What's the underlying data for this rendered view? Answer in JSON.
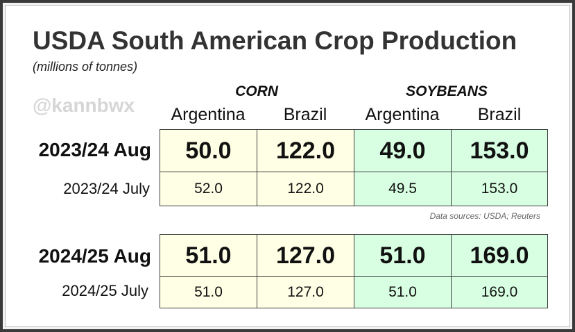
{
  "chart_data": {
    "type": "table",
    "title": "USDA South American Crop Production",
    "subtitle": "(millions of tonnes)",
    "watermark": "@kannbwx",
    "groups": [
      "CORN",
      "SOYBEANS"
    ],
    "columns": [
      "Argentina",
      "Brazil",
      "Argentina",
      "Brazil"
    ],
    "rows": [
      {
        "label": "2023/24 Aug",
        "values": [
          "50.0",
          "122.0",
          "49.0",
          "153.0"
        ]
      },
      {
        "label": "2023/24 July",
        "values": [
          "52.0",
          "122.0",
          "49.5",
          "153.0"
        ]
      },
      {
        "label": "2024/25 Aug",
        "values": [
          "51.0",
          "127.0",
          "51.0",
          "169.0"
        ]
      },
      {
        "label": "2024/25 July",
        "values": [
          "51.0",
          "127.0",
          "51.0",
          "169.0"
        ]
      }
    ],
    "source": "Data sources: USDA; Reuters",
    "colors": {
      "corn_fill": "#ffffe5",
      "soybeans_fill": "#d8ffe2",
      "title": "#333333",
      "watermark": "#d6d6d6"
    }
  }
}
